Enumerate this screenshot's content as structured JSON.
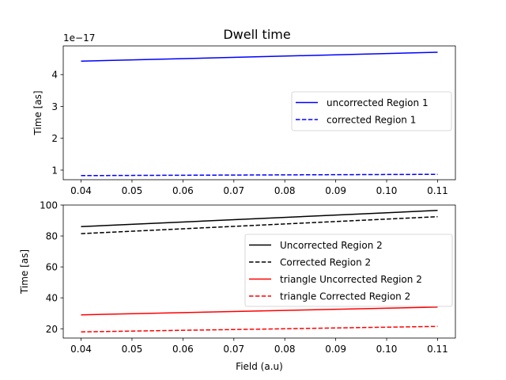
{
  "figure": {
    "title": "Dwell time"
  },
  "chart_data": [
    {
      "type": "line",
      "title": "Dwell time",
      "xlabel": "",
      "ylabel": "Time [as]",
      "y_offset_label": "1e−17",
      "x": [
        0.04,
        0.11
      ],
      "xlim": [
        0.0365,
        0.1135
      ],
      "ylim": [
        0.7,
        4.9
      ],
      "xticks": [
        0.04,
        0.05,
        0.06,
        0.07,
        0.08,
        0.09,
        0.1,
        0.11
      ],
      "xtick_labels": [
        "0.04",
        "0.05",
        "0.06",
        "0.07",
        "0.08",
        "0.09",
        "0.10",
        "0.11"
      ],
      "yticks": [
        1,
        2,
        3,
        4
      ],
      "ytick_labels": [
        "1",
        "2",
        "3",
        "4"
      ],
      "legend_position": "center-right",
      "series": [
        {
          "name": "uncorrected Region 1",
          "values": [
            4.42,
            4.7
          ],
          "color": "#0000ff",
          "dash": "solid"
        },
        {
          "name": "corrected Region 1",
          "values": [
            0.83,
            0.87
          ],
          "color": "#0000ff",
          "dash": "dashed"
        }
      ]
    },
    {
      "type": "line",
      "title": "",
      "xlabel": "Field (a.u)",
      "ylabel": "Time [as]",
      "x": [
        0.04,
        0.11
      ],
      "xlim": [
        0.0365,
        0.1135
      ],
      "ylim": [
        14,
        100
      ],
      "xticks": [
        0.04,
        0.05,
        0.06,
        0.07,
        0.08,
        0.09,
        0.1,
        0.11
      ],
      "xtick_labels": [
        "0.04",
        "0.05",
        "0.06",
        "0.07",
        "0.08",
        "0.09",
        "0.10",
        "0.11"
      ],
      "yticks": [
        20,
        40,
        60,
        80,
        100
      ],
      "ytick_labels": [
        "20",
        "40",
        "60",
        "80",
        "100"
      ],
      "legend_position": "center-right",
      "series": [
        {
          "name": "Uncorrected Region 2",
          "values": [
            86.0,
            96.5
          ],
          "color": "#000000",
          "dash": "solid"
        },
        {
          "name": "Corrected Region 2",
          "values": [
            81.5,
            92.5
          ],
          "color": "#000000",
          "dash": "dashed"
        },
        {
          "name": "triangle Uncorrected Region 2",
          "values": [
            29.0,
            34.0
          ],
          "color": "#ff0000",
          "dash": "solid"
        },
        {
          "name": "triangle Corrected Region 2",
          "values": [
            18.0,
            21.5
          ],
          "color": "#ff0000",
          "dash": "dashed"
        }
      ]
    }
  ]
}
